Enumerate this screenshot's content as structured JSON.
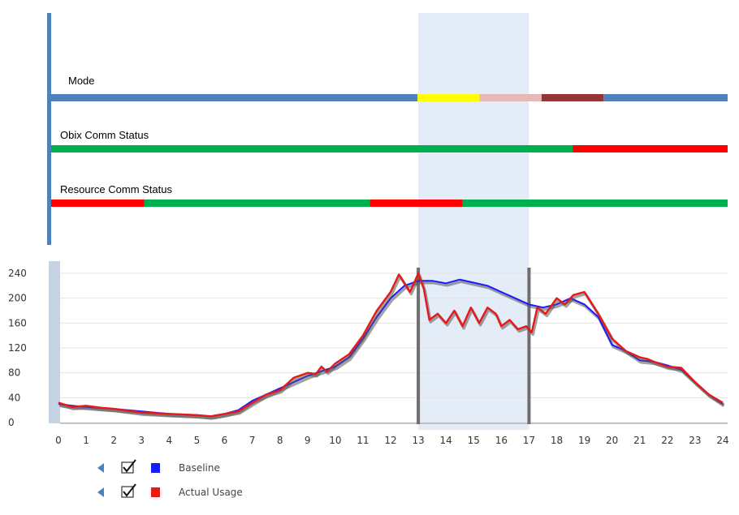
{
  "status_panel": {
    "rows": [
      {
        "label": "Mode",
        "segments": [
          {
            "from": 0,
            "to": 13,
            "color": "#4f81bd"
          },
          {
            "from": 13,
            "to": 15.2,
            "color": "#ffff00"
          },
          {
            "from": 15.2,
            "to": 17.4,
            "color": "#e6b8b7"
          },
          {
            "from": 17.4,
            "to": 19.6,
            "color": "#943634"
          },
          {
            "from": 19.6,
            "to": 24,
            "color": "#4f81bd"
          }
        ]
      },
      {
        "label": "Obix Comm Status",
        "segments": [
          {
            "from": 0,
            "to": 18.5,
            "color": "#00b050"
          },
          {
            "from": 18.5,
            "to": 24,
            "color": "#ff0000"
          }
        ]
      },
      {
        "label": "Resource Comm Status",
        "segments": [
          {
            "from": 0,
            "to": 3.3,
            "color": "#ff0000"
          },
          {
            "from": 3.3,
            "to": 11.3,
            "color": "#00b050"
          },
          {
            "from": 11.3,
            "to": 14.6,
            "color": "#ff0000"
          },
          {
            "from": 14.6,
            "to": 24,
            "color": "#00b050"
          }
        ]
      }
    ]
  },
  "highlight_window": {
    "from": 13,
    "to": 17,
    "color": "#dbe5f5"
  },
  "chart_data": {
    "type": "line",
    "xlim": [
      0,
      24
    ],
    "ylim": [
      0,
      240
    ],
    "x_ticks": [
      "0",
      "1",
      "2",
      "3",
      "4",
      "5",
      "6",
      "7",
      "8",
      "9",
      "10",
      "11",
      "12",
      "13",
      "14",
      "15",
      "16",
      "17",
      "18",
      "19",
      "20",
      "21",
      "22",
      "23",
      "24"
    ],
    "y_ticks": [
      "0",
      "40",
      "80",
      "120",
      "160",
      "200",
      "240"
    ],
    "grid": "horizontal",
    "series": [
      {
        "name": "Baseline",
        "color": "#1a1aff",
        "points": [
          [
            0,
            30
          ],
          [
            0.5,
            27
          ],
          [
            1,
            25
          ],
          [
            2,
            22
          ],
          [
            3,
            18
          ],
          [
            4,
            14
          ],
          [
            5,
            12
          ],
          [
            5.5,
            10
          ],
          [
            6,
            14
          ],
          [
            6.5,
            20
          ],
          [
            7,
            35
          ],
          [
            7.5,
            45
          ],
          [
            8,
            55
          ],
          [
            8.5,
            65
          ],
          [
            9,
            75
          ],
          [
            10,
            90
          ],
          [
            10.5,
            105
          ],
          [
            11,
            135
          ],
          [
            11.5,
            170
          ],
          [
            12,
            200
          ],
          [
            12.5,
            220
          ],
          [
            13,
            228
          ],
          [
            13.5,
            228
          ],
          [
            14,
            224
          ],
          [
            14.5,
            230
          ],
          [
            15,
            225
          ],
          [
            15.5,
            220
          ],
          [
            16,
            210
          ],
          [
            16.5,
            200
          ],
          [
            17,
            190
          ],
          [
            17.5,
            185
          ],
          [
            18,
            190
          ],
          [
            18.5,
            200
          ],
          [
            19,
            190
          ],
          [
            19.5,
            170
          ],
          [
            20,
            125
          ],
          [
            20.5,
            115
          ],
          [
            21,
            100
          ],
          [
            21.5,
            98
          ],
          [
            22,
            92
          ],
          [
            22.5,
            85
          ],
          [
            23,
            65
          ],
          [
            23.5,
            45
          ],
          [
            24,
            30
          ]
        ]
      },
      {
        "name": "Actual Usage",
        "color": "#e8191a",
        "points": [
          [
            0,
            32
          ],
          [
            0.5,
            25
          ],
          [
            1,
            27
          ],
          [
            1.5,
            24
          ],
          [
            2,
            22
          ],
          [
            3,
            16
          ],
          [
            4,
            14
          ],
          [
            5,
            12
          ],
          [
            5.5,
            10
          ],
          [
            6,
            14
          ],
          [
            6.5,
            18
          ],
          [
            7,
            32
          ],
          [
            7.5,
            45
          ],
          [
            8,
            52
          ],
          [
            8.5,
            72
          ],
          [
            9,
            80
          ],
          [
            9.3,
            78
          ],
          [
            9.5,
            90
          ],
          [
            9.7,
            82
          ],
          [
            10,
            95
          ],
          [
            10.5,
            110
          ],
          [
            11,
            140
          ],
          [
            11.5,
            180
          ],
          [
            12,
            210
          ],
          [
            12.3,
            238
          ],
          [
            12.7,
            210
          ],
          [
            13,
            240
          ],
          [
            13.2,
            215
          ],
          [
            13.4,
            165
          ],
          [
            13.7,
            175
          ],
          [
            14,
            160
          ],
          [
            14.3,
            180
          ],
          [
            14.6,
            155
          ],
          [
            14.9,
            185
          ],
          [
            15.2,
            160
          ],
          [
            15.5,
            185
          ],
          [
            15.8,
            175
          ],
          [
            16,
            155
          ],
          [
            16.3,
            165
          ],
          [
            16.6,
            150
          ],
          [
            16.9,
            155
          ],
          [
            17.1,
            145
          ],
          [
            17.3,
            185
          ],
          [
            17.6,
            175
          ],
          [
            18,
            200
          ],
          [
            18.3,
            190
          ],
          [
            18.6,
            205
          ],
          [
            19,
            210
          ],
          [
            19.5,
            175
          ],
          [
            20,
            135
          ],
          [
            20.5,
            115
          ],
          [
            21,
            105
          ],
          [
            21.3,
            102
          ],
          [
            21.5,
            98
          ],
          [
            22,
            90
          ],
          [
            22.5,
            88
          ],
          [
            23,
            65
          ],
          [
            23.5,
            45
          ],
          [
            24,
            32
          ]
        ]
      }
    ],
    "legend": {
      "placement": "bottom-left",
      "items": [
        {
          "label": "Baseline",
          "color": "#1a1aff",
          "checked": true
        },
        {
          "label": "Actual Usage",
          "color": "#e8191a",
          "checked": true
        }
      ]
    }
  }
}
